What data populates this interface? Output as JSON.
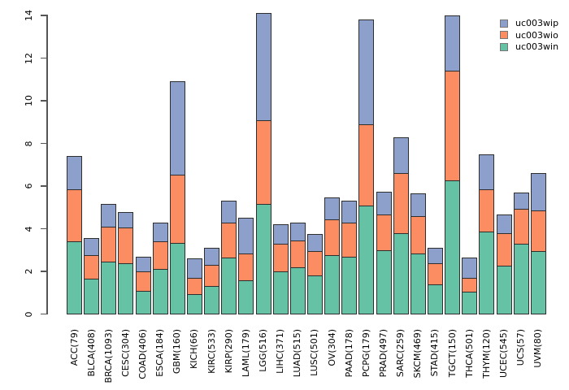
{
  "chart_data": {
    "type": "bar",
    "stacked": true,
    "title": "",
    "xlabel": "",
    "ylabel": "",
    "ylim": [
      0,
      14
    ],
    "yticks": [
      0,
      2,
      4,
      6,
      8,
      10,
      12,
      14
    ],
    "grid": false,
    "legend_position": "top-right",
    "background_color": "#ffffff",
    "categories": [
      "ACC(79)",
      "BLCA(408)",
      "BRCA(1093)",
      "CESC(304)",
      "COAD(406)",
      "ESCA(184)",
      "GBM(160)",
      "KICH(66)",
      "KIRC(533)",
      "KIRP(290)",
      "LAML(179)",
      "LGG(516)",
      "LIHC(371)",
      "LUAD(515)",
      "LUSC(501)",
      "OV(304)",
      "PAAD(178)",
      "PCPG(179)",
      "PRAD(497)",
      "SARC(259)",
      "SKCM(469)",
      "STAD(415)",
      "TGCT(150)",
      "THCA(501)",
      "THYM(120)",
      "UCEC(545)",
      "UCS(57)",
      "UVM(80)"
    ],
    "series": [
      {
        "name": "uc003win",
        "color": "#66C2A5",
        "values": [
          3.4,
          1.65,
          2.45,
          2.4,
          1.1,
          2.1,
          3.35,
          0.95,
          1.3,
          2.65,
          1.6,
          5.15,
          2.0,
          2.2,
          1.8,
          2.75,
          2.7,
          5.1,
          3.0,
          3.8,
          2.85,
          1.4,
          6.25,
          1.05,
          3.85,
          2.25,
          3.3,
          2.95
        ]
      },
      {
        "name": "uc003wio",
        "color": "#FC8D62",
        "values": [
          2.45,
          1.1,
          1.65,
          1.65,
          0.9,
          1.3,
          3.2,
          0.75,
          1.0,
          1.65,
          1.25,
          3.95,
          1.3,
          1.25,
          1.15,
          1.7,
          1.6,
          3.8,
          1.65,
          2.8,
          1.75,
          1.0,
          5.15,
          0.65,
          2.0,
          1.55,
          1.65,
          1.9
        ]
      },
      {
        "name": "uc003wip",
        "color": "#8DA0CB",
        "values": [
          1.55,
          0.8,
          1.05,
          0.75,
          0.7,
          0.9,
          4.35,
          0.9,
          0.8,
          1.0,
          1.65,
          5.0,
          0.9,
          0.85,
          0.8,
          1.0,
          1.0,
          4.9,
          1.1,
          1.7,
          1.05,
          0.7,
          2.6,
          0.95,
          1.65,
          0.85,
          0.75,
          1.75
        ]
      }
    ]
  },
  "legend": {
    "items": [
      {
        "label": "uc003wip",
        "color": "#8DA0CB"
      },
      {
        "label": "uc003wio",
        "color": "#FC8D62"
      },
      {
        "label": "uc003win",
        "color": "#66C2A5"
      }
    ]
  }
}
